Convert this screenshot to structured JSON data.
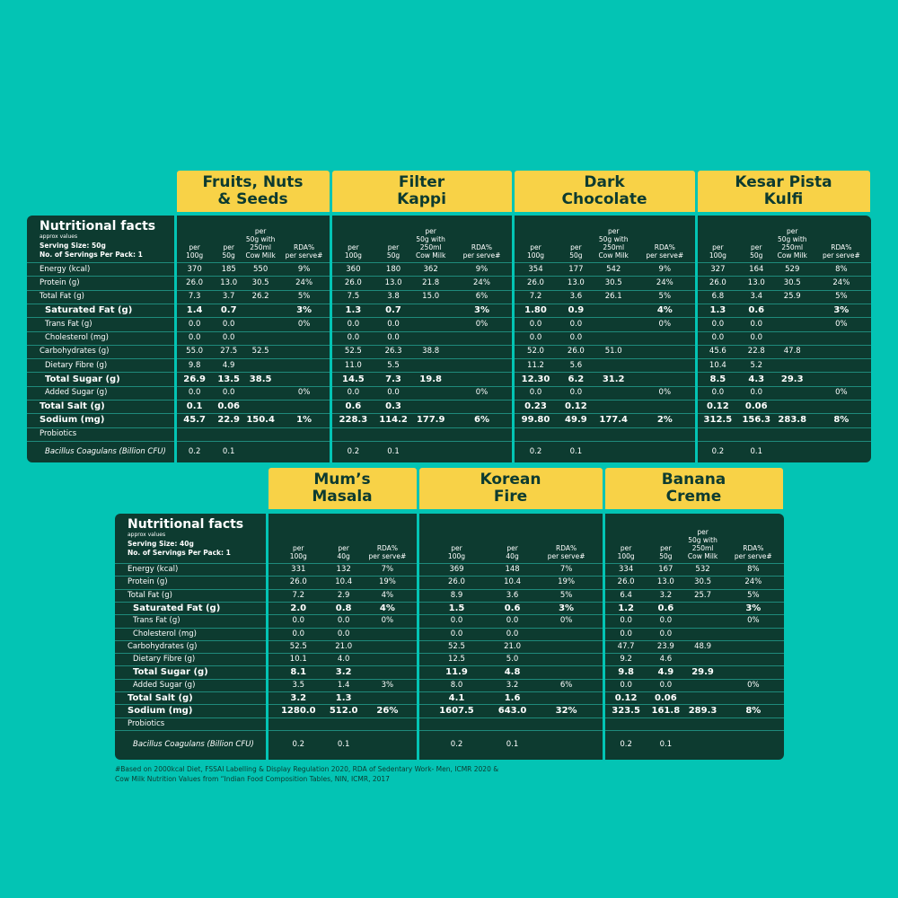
{
  "tables": [
    {
      "label_header": {
        "title": "Nutritional facts",
        "subtitle": "approx values",
        "serving_size": "Serving Size: 50g",
        "servings": "No. of Servings Per Pack: 1"
      },
      "row_labels": [
        "Energy (kcal)",
        "Protein (g)",
        "Total Fat (g)",
        "Saturated Fat (g)",
        "Trans Fat (g)",
        "Cholesterol (mg)",
        "Carbohydrates (g)",
        "Dietary Fibre (g)",
        "Total Sugar (g)",
        "Added Sugar (g)",
        "Total Salt (g)",
        "Sodium (mg)",
        "Probiotics",
        "Bacillus Coagulans (Billion CFU)"
      ],
      "flavors": [
        {
          "name": [
            "Fruits, Nuts",
            "& Seeds"
          ],
          "columns": [
            [
              "per",
              "100g"
            ],
            [
              "per",
              "50g"
            ],
            [
              "per",
              "50g with",
              "250ml",
              "Cow Milk"
            ],
            [
              "RDA%",
              "per serve#"
            ]
          ],
          "rows": [
            [
              "370",
              "185",
              "550",
              "9%"
            ],
            [
              "26.0",
              "13.0",
              "30.5",
              "24%"
            ],
            [
              "7.3",
              "3.7",
              "26.2",
              "5%"
            ],
            [
              "1.4",
              "0.7",
              null,
              "3%"
            ],
            [
              "0.0",
              "0.0",
              null,
              "0%"
            ],
            [
              "0.0",
              "0.0",
              null,
              null
            ],
            [
              "55.0",
              "27.5",
              "52.5",
              null
            ],
            [
              "9.8",
              "4.9",
              null,
              null
            ],
            [
              "26.9",
              "13.5",
              "38.5",
              null
            ],
            [
              "0.0",
              "0.0",
              null,
              "0%"
            ],
            [
              "0.1",
              "0.06",
              null,
              null
            ],
            [
              "45.7",
              "22.9",
              "150.4",
              "1%"
            ],
            [
              null,
              null,
              null,
              null
            ],
            [
              "0.2",
              "0.1",
              null,
              null
            ]
          ]
        },
        {
          "name": [
            "Filter",
            "Kappi"
          ],
          "columns": [
            [
              "per",
              "100g"
            ],
            [
              "per",
              "50g"
            ],
            [
              "per",
              "50g with",
              "250ml",
              "Cow Milk"
            ],
            [
              "RDA%",
              "per serve#"
            ]
          ],
          "rows": [
            [
              "360",
              "180",
              "362",
              "9%"
            ],
            [
              "26.0",
              "13.0",
              "21.8",
              "24%"
            ],
            [
              "7.5",
              "3.8",
              "15.0",
              "6%"
            ],
            [
              "1.3",
              "0.7",
              null,
              "3%"
            ],
            [
              "0.0",
              "0.0",
              null,
              "0%"
            ],
            [
              "0.0",
              "0.0",
              null,
              null
            ],
            [
              "52.5",
              "26.3",
              "38.8",
              null
            ],
            [
              "11.0",
              "5.5",
              null,
              null
            ],
            [
              "14.5",
              "7.3",
              "19.8",
              null
            ],
            [
              "0.0",
              "0.0",
              null,
              "0%"
            ],
            [
              "0.6",
              "0.3",
              null,
              null
            ],
            [
              "228.3",
              "114.2",
              "177.9",
              "6%"
            ],
            [
              null,
              null,
              null,
              null
            ],
            [
              "0.2",
              "0.1",
              null,
              null
            ]
          ]
        },
        {
          "name": [
            "Dark",
            "Chocolate"
          ],
          "columns": [
            [
              "per",
              "100g"
            ],
            [
              "per",
              "50g"
            ],
            [
              "per",
              "50g with",
              "250ml",
              "Cow Milk"
            ],
            [
              "RDA%",
              "per serve#"
            ]
          ],
          "rows": [
            [
              "354",
              "177",
              "542",
              "9%"
            ],
            [
              "26.0",
              "13.0",
              "30.5",
              "24%"
            ],
            [
              "7.2",
              "3.6",
              "26.1",
              "5%"
            ],
            [
              "1.80",
              "0.9",
              null,
              "4%"
            ],
            [
              "0.0",
              "0.0",
              null,
              "0%"
            ],
            [
              "0.0",
              "0.0",
              null,
              null
            ],
            [
              "52.0",
              "26.0",
              "51.0",
              null
            ],
            [
              "11.2",
              "5.6",
              null,
              null
            ],
            [
              "12.30",
              "6.2",
              "31.2",
              null
            ],
            [
              "0.0",
              "0.0",
              null,
              "0%"
            ],
            [
              "0.23",
              "0.12",
              null,
              null
            ],
            [
              "99.80",
              "49.9",
              "177.4",
              "2%"
            ],
            [
              null,
              null,
              null,
              null
            ],
            [
              "0.2",
              "0.1",
              null,
              null
            ]
          ]
        },
        {
          "name": [
            "Kesar Pista",
            "Kulfi"
          ],
          "columns": [
            [
              "per",
              "100g"
            ],
            [
              "per",
              "50g"
            ],
            [
              "per",
              "50g with",
              "250ml",
              "Cow Milk"
            ],
            [
              "RDA%",
              "per serve#"
            ]
          ],
          "rows": [
            [
              "327",
              "164",
              "529",
              "8%"
            ],
            [
              "26.0",
              "13.0",
              "30.5",
              "24%"
            ],
            [
              "6.8",
              "3.4",
              "25.9",
              "5%"
            ],
            [
              "1.3",
              "0.6",
              null,
              "3%"
            ],
            [
              "0.0",
              "0.0",
              null,
              "0%"
            ],
            [
              "0.0",
              "0.0",
              null,
              null
            ],
            [
              "45.6",
              "22.8",
              "47.8",
              null
            ],
            [
              "10.4",
              "5.2",
              null,
              null
            ],
            [
              "8.5",
              "4.3",
              "29.3",
              null
            ],
            [
              "0.0",
              "0.0",
              null,
              "0%"
            ],
            [
              "0.12",
              "0.06",
              null,
              null
            ],
            [
              "312.5",
              "156.3",
              "283.8",
              "8%"
            ],
            [
              null,
              null,
              null,
              null
            ],
            [
              "0.2",
              "0.1",
              null,
              null
            ]
          ]
        }
      ]
    },
    {
      "label_header": {
        "title": "Nutritional facts",
        "subtitle": "approx values",
        "serving_size": "Serving Size: 40g",
        "servings": "No. of Servings Per Pack: 1"
      },
      "row_labels": [
        "Energy (kcal)",
        "Protein (g)",
        "Total Fat (g)",
        "Saturated Fat (g)",
        "Trans Fat (g)",
        "Cholesterol (mg)",
        "Carbohydrates (g)",
        "Dietary Fibre (g)",
        "Total Sugar (g)",
        "Added Sugar (g)",
        "Total Salt (g)",
        "Sodium (mg)",
        "Probiotics",
        "Bacillus Coagulans (Billion CFU)"
      ],
      "flavors": [
        {
          "name": [
            "Mum’s",
            "Masala"
          ],
          "columns": [
            [
              "per",
              "100g"
            ],
            [
              "per",
              "40g"
            ],
            [
              "RDA%",
              "per serve#"
            ]
          ],
          "rows": [
            [
              "331",
              "132",
              "7%"
            ],
            [
              "26.0",
              "10.4",
              "19%"
            ],
            [
              "7.2",
              "2.9",
              "4%"
            ],
            [
              "2.0",
              "0.8",
              "4%"
            ],
            [
              "0.0",
              "0.0",
              "0%"
            ],
            [
              "0.0",
              "0.0",
              null
            ],
            [
              "52.5",
              "21.0",
              null
            ],
            [
              "10.1",
              "4.0",
              null
            ],
            [
              "8.1",
              "3.2",
              null
            ],
            [
              "3.5",
              "1.4",
              "3%"
            ],
            [
              "3.2",
              "1.3",
              null
            ],
            [
              "1280.0",
              "512.0",
              "26%"
            ],
            [
              null,
              null,
              null
            ],
            [
              "0.2",
              "0.1",
              null
            ]
          ]
        },
        {
          "name": [
            "Korean",
            "Fire"
          ],
          "columns": [
            [
              "per",
              "100g"
            ],
            [
              "per",
              "40g"
            ],
            [
              "RDA%",
              "per serve#"
            ]
          ],
          "rows": [
            [
              "369",
              "148",
              "7%"
            ],
            [
              "26.0",
              "10.4",
              "19%"
            ],
            [
              "8.9",
              "3.6",
              "5%"
            ],
            [
              "1.5",
              "0.6",
              "3%"
            ],
            [
              "0.0",
              "0.0",
              "0%"
            ],
            [
              "0.0",
              "0.0",
              null
            ],
            [
              "52.5",
              "21.0",
              null
            ],
            [
              "12.5",
              "5.0",
              null
            ],
            [
              "11.9",
              "4.8",
              null
            ],
            [
              "8.0",
              "3.2",
              "6%"
            ],
            [
              "4.1",
              "1.6",
              null
            ],
            [
              "1607.5",
              "643.0",
              "32%"
            ],
            [
              null,
              null,
              null
            ],
            [
              "0.2",
              "0.1",
              null
            ]
          ]
        },
        {
          "name": [
            "Banana",
            "Creme"
          ],
          "columns": [
            [
              "per",
              "100g"
            ],
            [
              "per",
              "50g"
            ],
            [
              "per",
              "50g with",
              "250ml",
              "Cow Milk"
            ],
            [
              "RDA%",
              "per serve#"
            ]
          ],
          "rows": [
            [
              "334",
              "167",
              "532",
              "8%"
            ],
            [
              "26.0",
              "13.0",
              "30.5",
              "24%"
            ],
            [
              "6.4",
              "3.2",
              "25.7",
              "5%"
            ],
            [
              "1.2",
              "0.6",
              null,
              "3%"
            ],
            [
              "0.0",
              "0.0",
              null,
              "0%"
            ],
            [
              "0.0",
              "0.0",
              null,
              null
            ],
            [
              "47.7",
              "23.9",
              "48.9",
              null
            ],
            [
              "9.2",
              "4.6",
              null,
              null
            ],
            [
              "9.8",
              "4.9",
              "29.9",
              null
            ],
            [
              "0.0",
              "0.0",
              null,
              "0%"
            ],
            [
              "0.12",
              "0.06",
              null,
              null
            ],
            [
              "323.5",
              "161.8",
              "289.3",
              "8%"
            ],
            [
              null,
              null,
              null,
              null
            ],
            [
              "0.2",
              "0.1",
              null,
              null
            ]
          ]
        }
      ]
    }
  ],
  "footnote": [
    "#Based on 2000kcal Diet, FSSAI Labelling & Display Regulation 2020, RDA of Sedentary Work- Men, ICMR 2020 &",
    "Cow Milk Nutrition Values from “Indian Food Composition Tables, NIN, ICMR, 2017"
  ]
}
